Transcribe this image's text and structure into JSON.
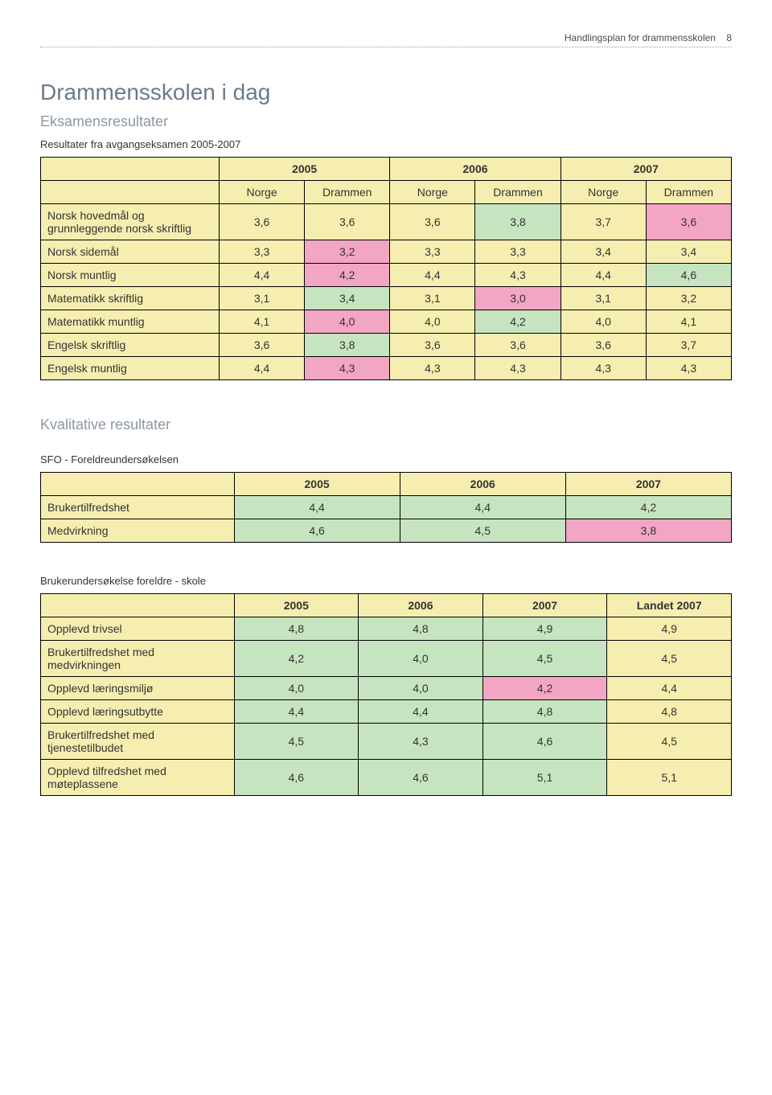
{
  "header": {
    "title": "Handlingsplan for drammensskolen",
    "page_num": "8"
  },
  "main_title": "Drammensskolen i dag",
  "exam": {
    "subtitle": "Eksamensresultater",
    "caption": "Resultater fra avgangseksamen 2005-2007",
    "years": [
      "2005",
      "2006",
      "2007"
    ],
    "cols": [
      "Norge",
      "Drammen",
      "Norge",
      "Drammen",
      "Norge",
      "Drammen"
    ],
    "rows": [
      {
        "label": "Norsk hovedmål og grunnleggende norsk skriftlig",
        "cells": [
          {
            "v": "3,6",
            "c": "yellow"
          },
          {
            "v": "3,6",
            "c": "yellow"
          },
          {
            "v": "3,6",
            "c": "yellow"
          },
          {
            "v": "3,8",
            "c": "green"
          },
          {
            "v": "3,7",
            "c": "yellow"
          },
          {
            "v": "3,6",
            "c": "pink"
          }
        ]
      },
      {
        "label": "Norsk sidemål",
        "cells": [
          {
            "v": "3,3",
            "c": "yellow"
          },
          {
            "v": "3,2",
            "c": "pink"
          },
          {
            "v": "3,3",
            "c": "yellow"
          },
          {
            "v": "3,3",
            "c": "yellow"
          },
          {
            "v": "3,4",
            "c": "yellow"
          },
          {
            "v": "3,4",
            "c": "yellow"
          }
        ]
      },
      {
        "label": "Norsk muntlig",
        "cells": [
          {
            "v": "4,4",
            "c": "yellow"
          },
          {
            "v": "4,2",
            "c": "pink"
          },
          {
            "v": "4,4",
            "c": "yellow"
          },
          {
            "v": "4,3",
            "c": "yellow"
          },
          {
            "v": "4,4",
            "c": "yellow"
          },
          {
            "v": "4,6",
            "c": "green"
          }
        ]
      },
      {
        "label": "Matematikk skriftlig",
        "cells": [
          {
            "v": "3,1",
            "c": "yellow"
          },
          {
            "v": "3,4",
            "c": "green"
          },
          {
            "v": "3,1",
            "c": "yellow"
          },
          {
            "v": "3,0",
            "c": "pink"
          },
          {
            "v": "3,1",
            "c": "yellow"
          },
          {
            "v": "3,2",
            "c": "yellow"
          }
        ]
      },
      {
        "label": "Matematikk muntlig",
        "cells": [
          {
            "v": "4,1",
            "c": "yellow"
          },
          {
            "v": "4,0",
            "c": "pink"
          },
          {
            "v": "4,0",
            "c": "yellow"
          },
          {
            "v": "4,2",
            "c": "green"
          },
          {
            "v": "4,0",
            "c": "yellow"
          },
          {
            "v": "4,1",
            "c": "yellow"
          }
        ]
      },
      {
        "label": "Engelsk skriftlig",
        "cells": [
          {
            "v": "3,6",
            "c": "yellow"
          },
          {
            "v": "3,8",
            "c": "green"
          },
          {
            "v": "3,6",
            "c": "yellow"
          },
          {
            "v": "3,6",
            "c": "yellow"
          },
          {
            "v": "3,6",
            "c": "yellow"
          },
          {
            "v": "3,7",
            "c": "yellow"
          }
        ]
      },
      {
        "label": "Engelsk muntlig",
        "cells": [
          {
            "v": "4,4",
            "c": "yellow"
          },
          {
            "v": "4,3",
            "c": "pink"
          },
          {
            "v": "4,3",
            "c": "yellow"
          },
          {
            "v": "4,3",
            "c": "yellow"
          },
          {
            "v": "4,3",
            "c": "yellow"
          },
          {
            "v": "4,3",
            "c": "yellow"
          }
        ]
      }
    ]
  },
  "kvalitative_title": "Kvalitative resultater",
  "sfo": {
    "caption": "SFO - Foreldreundersøkelsen",
    "cols": [
      "2005",
      "2006",
      "2007"
    ],
    "rows": [
      {
        "label": "Brukertilfredshet",
        "cells": [
          {
            "v": "4,4",
            "c": "green"
          },
          {
            "v": "4,4",
            "c": "green"
          },
          {
            "v": "4,2",
            "c": "green"
          }
        ]
      },
      {
        "label": "Medvirkning",
        "cells": [
          {
            "v": "4,6",
            "c": "green"
          },
          {
            "v": "4,5",
            "c": "green"
          },
          {
            "v": "3,8",
            "c": "pink"
          }
        ]
      }
    ]
  },
  "parent": {
    "caption": "Brukerundersøkelse foreldre - skole",
    "cols": [
      "2005",
      "2006",
      "2007",
      "Landet 2007"
    ],
    "rows": [
      {
        "label": "Opplevd trivsel",
        "cells": [
          {
            "v": "4,8",
            "c": "green"
          },
          {
            "v": "4,8",
            "c": "green"
          },
          {
            "v": "4,9",
            "c": "green"
          },
          {
            "v": "4,9",
            "c": "yellow"
          }
        ]
      },
      {
        "label": "Brukertilfredshet med medvirkningen",
        "cells": [
          {
            "v": "4,2",
            "c": "green"
          },
          {
            "v": "4,0",
            "c": "green"
          },
          {
            "v": "4,5",
            "c": "green"
          },
          {
            "v": "4,5",
            "c": "yellow"
          }
        ]
      },
      {
        "label": "Opplevd læringsmiljø",
        "cells": [
          {
            "v": "4,0",
            "c": "green"
          },
          {
            "v": "4,0",
            "c": "green"
          },
          {
            "v": "4,2",
            "c": "pink"
          },
          {
            "v": "4,4",
            "c": "yellow"
          }
        ]
      },
      {
        "label": "Opplevd læringsutbytte",
        "cells": [
          {
            "v": "4,4",
            "c": "green"
          },
          {
            "v": "4,4",
            "c": "green"
          },
          {
            "v": "4,8",
            "c": "green"
          },
          {
            "v": "4,8",
            "c": "yellow"
          }
        ]
      },
      {
        "label": "Brukertilfredshet med tjenestetilbudet",
        "cells": [
          {
            "v": "4,5",
            "c": "green"
          },
          {
            "v": "4,3",
            "c": "green"
          },
          {
            "v": "4,6",
            "c": "green"
          },
          {
            "v": "4,5",
            "c": "yellow"
          }
        ]
      },
      {
        "label": "Opplevd tilfredshet med møteplassene",
        "cells": [
          {
            "v": "4,6",
            "c": "green"
          },
          {
            "v": "4,6",
            "c": "green"
          },
          {
            "v": "5,1",
            "c": "green"
          },
          {
            "v": "5,1",
            "c": "yellow"
          }
        ]
      }
    ]
  },
  "colors": {
    "pink": "#f3a5c4",
    "green": "#c6e4c0",
    "yellow": "#f6eeb0",
    "heading": "#6a7a8a",
    "subhead": "#8a98a6"
  }
}
